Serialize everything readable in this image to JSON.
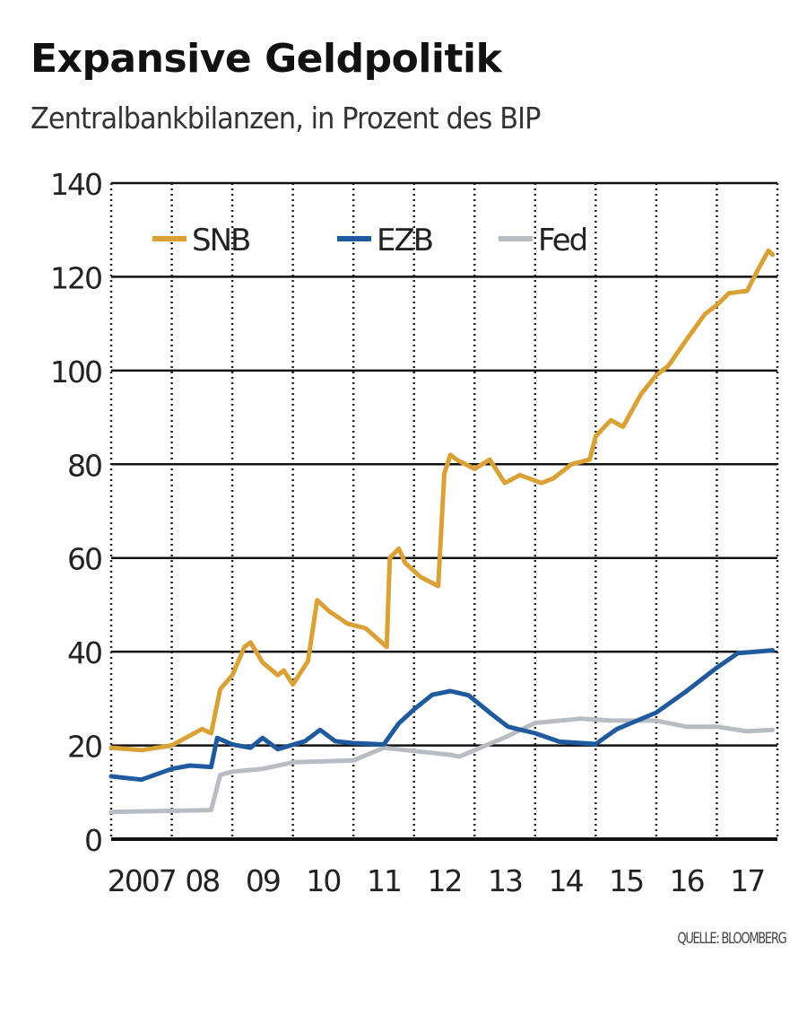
{
  "title": "Expansive Geldpolitik",
  "subtitle": "Zentralbankbilanzen, in Prozent des BIP",
  "source": "QUELLE: BLOOMBERG",
  "chart_data": {
    "type": "line",
    "title": "Expansive Geldpolitik",
    "subtitle": "Zentralbankbilanzen, in Prozent des BIP",
    "xlim": [
      2007,
      2018
    ],
    "ylim": [
      0,
      140
    ],
    "y_ticks": [
      0,
      20,
      40,
      60,
      80,
      100,
      120,
      140
    ],
    "x_tick_labels": [
      "2007",
      "08",
      "09",
      "10",
      "11",
      "12",
      "13",
      "14",
      "15",
      "16",
      "17"
    ],
    "grid": {
      "horizontal": "solid",
      "vertical": "dotted"
    },
    "legend_position": "top-left",
    "series": [
      {
        "name": "SNB",
        "color": "#d9a136",
        "x": [
          2007.0,
          2007.5,
          2008.0,
          2008.5,
          2008.65,
          2008.8,
          2009.0,
          2009.2,
          2009.3,
          2009.5,
          2009.75,
          2009.85,
          2010.0,
          2010.25,
          2010.4,
          2010.6,
          2010.9,
          2011.2,
          2011.55,
          2011.6,
          2011.75,
          2011.85,
          2012.1,
          2012.4,
          2012.5,
          2012.6,
          2012.7,
          2013.0,
          2013.25,
          2013.5,
          2013.75,
          2014.1,
          2014.3,
          2014.6,
          2014.9,
          2015.0,
          2015.25,
          2015.45,
          2015.75,
          2016.0,
          2016.2,
          2016.5,
          2016.8,
          2017.0,
          2017.2,
          2017.5,
          2017.7,
          2017.85,
          2017.92
        ],
        "y": [
          19.5,
          19,
          20,
          23.5,
          22.6,
          32,
          35,
          41,
          42,
          37.7,
          35,
          36,
          33,
          38,
          51,
          48.6,
          46,
          45,
          41,
          60,
          62,
          59,
          56,
          54,
          78,
          82,
          81,
          79,
          81,
          76,
          77.7,
          76,
          77,
          80,
          81,
          86,
          89.4,
          88,
          95,
          99,
          101,
          106.6,
          112,
          114,
          116.5,
          117,
          122,
          125.6,
          124.7
        ]
      },
      {
        "name": "EZB",
        "color": "#1f5a9e",
        "x": [
          2007.0,
          2007.5,
          2008.0,
          2008.3,
          2008.65,
          2008.75,
          2009.0,
          2009.3,
          2009.5,
          2009.75,
          2010.2,
          2010.45,
          2010.7,
          2011.0,
          2011.5,
          2011.75,
          2012.0,
          2012.3,
          2012.6,
          2012.9,
          2013.25,
          2013.55,
          2014.0,
          2014.4,
          2015.0,
          2015.35,
          2016.0,
          2016.5,
          2017.0,
          2017.35,
          2017.92
        ],
        "y": [
          13.4,
          12.7,
          15,
          15.7,
          15.4,
          21.6,
          20.2,
          19.5,
          21.6,
          19.2,
          20.9,
          23.3,
          20.9,
          20.5,
          20.2,
          24.7,
          27.7,
          30.8,
          31.6,
          30.7,
          27,
          24,
          22.6,
          20.8,
          20.3,
          23.5,
          27,
          31.6,
          36.6,
          39.7,
          40.3
        ]
      },
      {
        "name": "Fed",
        "color": "#b9bdc3",
        "x": [
          2007.0,
          2008.65,
          2008.8,
          2009.0,
          2009.5,
          2010.0,
          2011.0,
          2011.5,
          2012.0,
          2012.6,
          2012.75,
          2013.0,
          2013.5,
          2014.0,
          2014.75,
          2015.25,
          2016.0,
          2016.5,
          2017.0,
          2017.5,
          2017.92
        ],
        "y": [
          5.8,
          6.2,
          13.7,
          14.4,
          15,
          16.4,
          16.8,
          19.5,
          18.8,
          18,
          17.6,
          19,
          21.7,
          24.8,
          25.7,
          25.3,
          25.3,
          24,
          24,
          23,
          23.3
        ]
      }
    ]
  }
}
